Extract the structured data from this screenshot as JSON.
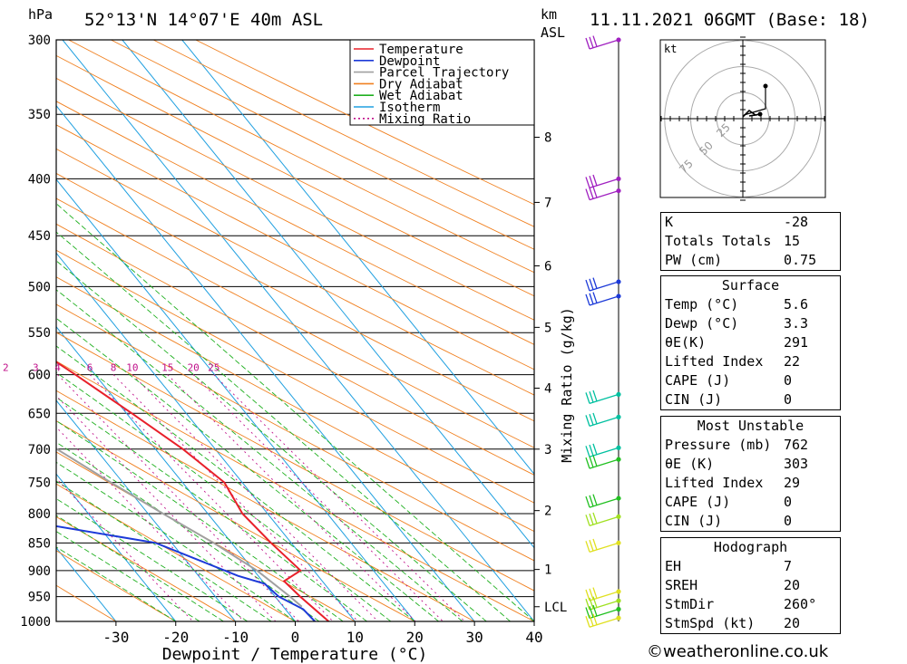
{
  "header": {
    "unit_left": "hPa",
    "location": "52°13'N 14°07'E 40m ASL",
    "km_label": "km",
    "asl_label": "ASL",
    "datetime": "11.11.2021 06GMT (Base: 18)"
  },
  "chart_data": {
    "type": "line",
    "xlabel": "Dewpoint / Temperature (°C)",
    "ylabel_right": "Mixing Ratio (g/kg)",
    "pressure_levels": [
      300,
      350,
      400,
      450,
      500,
      550,
      600,
      650,
      700,
      750,
      800,
      850,
      900,
      950,
      1000
    ],
    "temperature_ticks": [
      -30,
      -20,
      -10,
      0,
      10,
      20,
      30,
      40
    ],
    "temperature_range": [
      -40,
      40
    ],
    "pressure_range": [
      300,
      1000
    ],
    "km_ticks": [
      {
        "label": "8",
        "p": 367
      },
      {
        "label": "7",
        "p": 420
      },
      {
        "label": "6",
        "p": 479
      },
      {
        "label": "5",
        "p": 544
      },
      {
        "label": "4",
        "p": 617
      },
      {
        "label": "3",
        "p": 700
      },
      {
        "label": "2",
        "p": 795
      },
      {
        "label": "1",
        "p": 898
      },
      {
        "label": "LCL",
        "p": 970
      }
    ],
    "mixing_ratio_labels": [
      "1",
      "2",
      "3",
      "4",
      "6",
      "8",
      "10",
      "15",
      "20",
      "25"
    ],
    "mixing_ratio_values": [
      1,
      2,
      3,
      4,
      6,
      8,
      10,
      15,
      20,
      25
    ],
    "legend": [
      "Temperature",
      "Dewpoint",
      "Parcel Trajectory",
      "Dry Adiabat",
      "Wet Adiabat",
      "Isotherm",
      "Mixing Ratio"
    ],
    "colors": {
      "temperature": "#e8202a",
      "dewpoint": "#1c3ad8",
      "parcel": "#a0a0a0",
      "dry_adiabat": "#f08020",
      "wet_adiabat": "#20b020",
      "isotherm": "#20a0e0",
      "mixing_ratio": "#c0108a"
    },
    "series": [
      {
        "name": "Temperature",
        "points": [
          {
            "p": 300,
            "t": -36.0
          },
          {
            "p": 350,
            "t": -30.2
          },
          {
            "p": 400,
            "t": -23.5
          },
          {
            "p": 450,
            "t": -17.4
          },
          {
            "p": 500,
            "t": -11.3
          },
          {
            "p": 550,
            "t": -8.2
          },
          {
            "p": 600,
            "t": -3.3
          },
          {
            "p": 650,
            "t": 0.9
          },
          {
            "p": 700,
            "t": 4.6
          },
          {
            "p": 750,
            "t": 7.0
          },
          {
            "p": 800,
            "t": 5.8
          },
          {
            "p": 850,
            "t": 6.6
          },
          {
            "p": 900,
            "t": 7.8
          },
          {
            "p": 920,
            "t": 3.6
          },
          {
            "p": 950,
            "t": 4.2
          },
          {
            "p": 1000,
            "t": 5.6
          }
        ]
      },
      {
        "name": "Dewpoint",
        "points": [
          {
            "p": 300,
            "t": -40.2
          },
          {
            "p": 350,
            "t": -35.1
          },
          {
            "p": 400,
            "t": -35.8
          },
          {
            "p": 450,
            "t": -35.6
          },
          {
            "p": 490,
            "t": -34.8
          },
          {
            "p": 510,
            "t": -29.5
          },
          {
            "p": 550,
            "t": -17.0
          },
          {
            "p": 600,
            "t": -27.1
          },
          {
            "p": 630,
            "t": -30.0
          },
          {
            "p": 700,
            "t": -25.5
          },
          {
            "p": 760,
            "t": -31.4
          },
          {
            "p": 800,
            "t": -27.4
          },
          {
            "p": 820,
            "t": -27.6
          },
          {
            "p": 850,
            "t": -12.7
          },
          {
            "p": 910,
            "t": -3.4
          },
          {
            "p": 925,
            "t": 0.0
          },
          {
            "p": 950,
            "t": 0.6
          },
          {
            "p": 975,
            "t": 3.0
          },
          {
            "p": 1000,
            "t": 3.3
          }
        ]
      },
      {
        "name": "Parcel Trajectory",
        "points": [
          {
            "p": 310,
            "t": -66.0
          },
          {
            "p": 350,
            "t": -61.0
          },
          {
            "p": 400,
            "t": -53.0
          },
          {
            "p": 450,
            "t": -46.0
          },
          {
            "p": 500,
            "t": -39.0
          },
          {
            "p": 550,
            "t": -33.0
          },
          {
            "p": 600,
            "t": -27.0
          },
          {
            "p": 650,
            "t": -21.0
          },
          {
            "p": 700,
            "t": -16.5
          },
          {
            "p": 750,
            "t": -12.0
          },
          {
            "p": 800,
            "t": -7.5
          },
          {
            "p": 850,
            "t": -3.0
          },
          {
            "p": 900,
            "t": 0.5
          },
          {
            "p": 950,
            "t": 2.5
          },
          {
            "p": 970,
            "t": 3.1
          }
        ]
      }
    ],
    "wind_barbs": [
      {
        "p": 300,
        "color": "#a020c0"
      },
      {
        "p": 400,
        "color": "#a020c0"
      },
      {
        "p": 410,
        "color": "#a020c0"
      },
      {
        "p": 495,
        "color": "#1c3ad8"
      },
      {
        "p": 510,
        "color": "#1c3ad8"
      },
      {
        "p": 625,
        "color": "#00c0a0"
      },
      {
        "p": 655,
        "color": "#00c0a0"
      },
      {
        "p": 698,
        "color": "#00c0a0"
      },
      {
        "p": 715,
        "color": "#20c020"
      },
      {
        "p": 775,
        "color": "#20c020"
      },
      {
        "p": 805,
        "color": "#a0e020"
      },
      {
        "p": 850,
        "color": "#e0e020"
      },
      {
        "p": 940,
        "color": "#e0e020"
      },
      {
        "p": 958,
        "color": "#a0e020"
      },
      {
        "p": 975,
        "color": "#20c020"
      },
      {
        "p": 993,
        "color": "#e0e020"
      }
    ]
  },
  "hodograph": {
    "unit": "kt",
    "ring_labels": [
      "25",
      "50",
      "75"
    ]
  },
  "stats": {
    "indices": [
      {
        "label": "K",
        "value": "-28"
      },
      {
        "label": "Totals Totals",
        "value": "15"
      },
      {
        "label": "PW (cm)",
        "value": "0.75"
      }
    ],
    "surface": {
      "title": "Surface",
      "rows": [
        {
          "label": "Temp (°C)",
          "value": "5.6"
        },
        {
          "label": "Dewp (°C)",
          "value": "3.3"
        },
        {
          "label": "θE(K)",
          "value": "291"
        },
        {
          "label": "Lifted Index",
          "value": "22"
        },
        {
          "label": "CAPE (J)",
          "value": "0"
        },
        {
          "label": "CIN (J)",
          "value": "0"
        }
      ]
    },
    "most_unstable": {
      "title": "Most Unstable",
      "rows": [
        {
          "label": "Pressure (mb)",
          "value": "762"
        },
        {
          "label": "θE (K)",
          "value": "303"
        },
        {
          "label": "Lifted Index",
          "value": "29"
        },
        {
          "label": "CAPE (J)",
          "value": "0"
        },
        {
          "label": "CIN (J)",
          "value": "0"
        }
      ]
    },
    "hodograph": {
      "title": "Hodograph",
      "rows": [
        {
          "label": "EH",
          "value": "7"
        },
        {
          "label": "SREH",
          "value": "20"
        },
        {
          "label": "StmDir",
          "value": "260°"
        },
        {
          "label": "StmSpd (kt)",
          "value": "20"
        }
      ]
    }
  },
  "footer": {
    "credit": "©weatheronline.co.uk"
  }
}
